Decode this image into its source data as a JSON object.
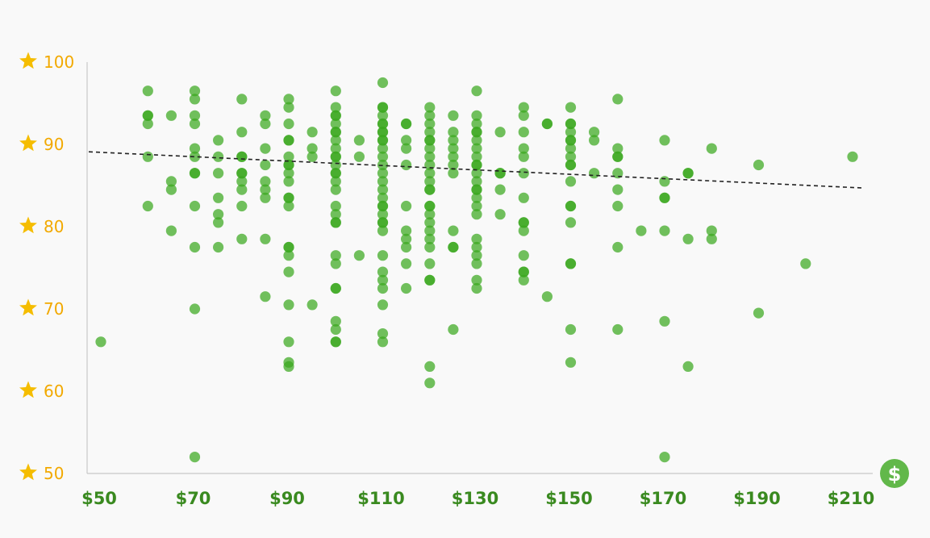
{
  "chart_data": {
    "type": "scatter",
    "title": "",
    "xlabel": "",
    "ylabel": "",
    "x_ticks": [
      "$50",
      "$70",
      "$90",
      "$110",
      "$130",
      "$150",
      "$170",
      "$190",
      "$210"
    ],
    "x_tick_values": [
      50,
      70,
      90,
      110,
      130,
      150,
      170,
      190,
      210
    ],
    "y_ticks": [
      "100",
      "90",
      "80",
      "70",
      "60",
      "50"
    ],
    "y_tick_values": [
      100,
      90,
      80,
      70,
      60,
      50
    ],
    "xlim": [
      48,
      210
    ],
    "ylim": [
      50,
      100
    ],
    "grid": false,
    "x_axis_icon": "dollar-circle-icon",
    "y_tick_icon": "star-icon",
    "colors": {
      "point": "#3aa81f",
      "axis_tick_x": "#3a8a20",
      "axis_tick_y": "#f2a900",
      "star": "#f5bd00",
      "dollar_badge": "#62b84a",
      "trend": "#222222"
    },
    "trend_line": {
      "x": [
        50,
        210
      ],
      "y": [
        89.1,
        84.7
      ]
    },
    "series": [
      {
        "values": [
          [
            50,
            66
          ],
          [
            60,
            96.5
          ],
          [
            60,
            93.5
          ],
          [
            60,
            93.5
          ],
          [
            60,
            92.5
          ],
          [
            60,
            88.5
          ],
          [
            60,
            82.5
          ],
          [
            65,
            93.5
          ],
          [
            65,
            85.5
          ],
          [
            65,
            84.5
          ],
          [
            65,
            79.5
          ],
          [
            70,
            96.5
          ],
          [
            70,
            95.5
          ],
          [
            70,
            93.5
          ],
          [
            70,
            92.5
          ],
          [
            70,
            89.5
          ],
          [
            70,
            88.5
          ],
          [
            70,
            86.5
          ],
          [
            70,
            86.5
          ],
          [
            70,
            82.5
          ],
          [
            70,
            77.5
          ],
          [
            70,
            70
          ],
          [
            70,
            52
          ],
          [
            75,
            90.5
          ],
          [
            75,
            88.5
          ],
          [
            75,
            86.5
          ],
          [
            75,
            83.5
          ],
          [
            75,
            81.5
          ],
          [
            75,
            80.5
          ],
          [
            75,
            77.5
          ],
          [
            80,
            95.5
          ],
          [
            80,
            91.5
          ],
          [
            80,
            88.5
          ],
          [
            80,
            88.5
          ],
          [
            80,
            86.5
          ],
          [
            80,
            86.5
          ],
          [
            80,
            85.5
          ],
          [
            80,
            84.5
          ],
          [
            80,
            82.5
          ],
          [
            80,
            78.5
          ],
          [
            85,
            93.5
          ],
          [
            85,
            92.5
          ],
          [
            85,
            89.5
          ],
          [
            85,
            87.5
          ],
          [
            85,
            85.5
          ],
          [
            85,
            84.5
          ],
          [
            85,
            83.5
          ],
          [
            85,
            78.5
          ],
          [
            85,
            71.5
          ],
          [
            90,
            95.5
          ],
          [
            90,
            94.5
          ],
          [
            90,
            92.5
          ],
          [
            90,
            90.5
          ],
          [
            90,
            90.5
          ],
          [
            90,
            88.5
          ],
          [
            90,
            87.5
          ],
          [
            90,
            87.5
          ],
          [
            90,
            86.5
          ],
          [
            90,
            85.5
          ],
          [
            90,
            83.5
          ],
          [
            90,
            83.5
          ],
          [
            90,
            82.5
          ],
          [
            90,
            77.5
          ],
          [
            90,
            77.5
          ],
          [
            90,
            76.5
          ],
          [
            90,
            74.5
          ],
          [
            90,
            70.5
          ],
          [
            90,
            66
          ],
          [
            90,
            63.5
          ],
          [
            90,
            63
          ],
          [
            95,
            91.5
          ],
          [
            95,
            89.5
          ],
          [
            95,
            88.5
          ],
          [
            95,
            70.5
          ],
          [
            100,
            96.5
          ],
          [
            100,
            94.5
          ],
          [
            100,
            93.5
          ],
          [
            100,
            93.5
          ],
          [
            100,
            92.5
          ],
          [
            100,
            91.5
          ],
          [
            100,
            91.5
          ],
          [
            100,
            90.5
          ],
          [
            100,
            89.5
          ],
          [
            100,
            88.5
          ],
          [
            100,
            88.5
          ],
          [
            100,
            87.5
          ],
          [
            100,
            86.5
          ],
          [
            100,
            86.5
          ],
          [
            100,
            85.5
          ],
          [
            100,
            84.5
          ],
          [
            100,
            82.5
          ],
          [
            100,
            81.5
          ],
          [
            100,
            80.5
          ],
          [
            100,
            80.5
          ],
          [
            100,
            76.5
          ],
          [
            100,
            75.5
          ],
          [
            100,
            72.5
          ],
          [
            100,
            72.5
          ],
          [
            100,
            68.5
          ],
          [
            100,
            67.5
          ],
          [
            100,
            66
          ],
          [
            100,
            66
          ],
          [
            105,
            90.5
          ],
          [
            105,
            88.5
          ],
          [
            105,
            76.5
          ],
          [
            110,
            97.5
          ],
          [
            110,
            94.5
          ],
          [
            110,
            94.5
          ],
          [
            110,
            93.5
          ],
          [
            110,
            92.5
          ],
          [
            110,
            92.5
          ],
          [
            110,
            91.5
          ],
          [
            110,
            91.5
          ],
          [
            110,
            90.5
          ],
          [
            110,
            90.5
          ],
          [
            110,
            89.5
          ],
          [
            110,
            88.5
          ],
          [
            110,
            87.5
          ],
          [
            110,
            86.5
          ],
          [
            110,
            85.5
          ],
          [
            110,
            84.5
          ],
          [
            110,
            83.5
          ],
          [
            110,
            82.5
          ],
          [
            110,
            82.5
          ],
          [
            110,
            81.5
          ],
          [
            110,
            80.5
          ],
          [
            110,
            80.5
          ],
          [
            110,
            79.5
          ],
          [
            110,
            76.5
          ],
          [
            110,
            74.5
          ],
          [
            110,
            73.5
          ],
          [
            110,
            72.5
          ],
          [
            110,
            70.5
          ],
          [
            110,
            67
          ],
          [
            110,
            66
          ],
          [
            115,
            92.5
          ],
          [
            115,
            92.5
          ],
          [
            115,
            90.5
          ],
          [
            115,
            89.5
          ],
          [
            115,
            87.5
          ],
          [
            115,
            82.5
          ],
          [
            115,
            79.5
          ],
          [
            115,
            78.5
          ],
          [
            115,
            77.5
          ],
          [
            115,
            75.5
          ],
          [
            115,
            72.5
          ],
          [
            120,
            94.5
          ],
          [
            120,
            93.5
          ],
          [
            120,
            92.5
          ],
          [
            120,
            91.5
          ],
          [
            120,
            90.5
          ],
          [
            120,
            90.5
          ],
          [
            120,
            89.5
          ],
          [
            120,
            88.5
          ],
          [
            120,
            87.5
          ],
          [
            120,
            86.5
          ],
          [
            120,
            85.5
          ],
          [
            120,
            84.5
          ],
          [
            120,
            84.5
          ],
          [
            120,
            82.5
          ],
          [
            120,
            82.5
          ],
          [
            120,
            81.5
          ],
          [
            120,
            80.5
          ],
          [
            120,
            79.5
          ],
          [
            120,
            78.5
          ],
          [
            120,
            77.5
          ],
          [
            120,
            75.5
          ],
          [
            120,
            73.5
          ],
          [
            120,
            73.5
          ],
          [
            120,
            63
          ],
          [
            120,
            61
          ],
          [
            125,
            93.5
          ],
          [
            125,
            91.5
          ],
          [
            125,
            90.5
          ],
          [
            125,
            89.5
          ],
          [
            125,
            88.5
          ],
          [
            125,
            87.5
          ],
          [
            125,
            86.5
          ],
          [
            125,
            79.5
          ],
          [
            125,
            77.5
          ],
          [
            125,
            77.5
          ],
          [
            125,
            67.5
          ],
          [
            130,
            96.5
          ],
          [
            130,
            93.5
          ],
          [
            130,
            92.5
          ],
          [
            130,
            91.5
          ],
          [
            130,
            91.5
          ],
          [
            130,
            90.5
          ],
          [
            130,
            89.5
          ],
          [
            130,
            88.5
          ],
          [
            130,
            87.5
          ],
          [
            130,
            87.5
          ],
          [
            130,
            86.5
          ],
          [
            130,
            85.5
          ],
          [
            130,
            84.5
          ],
          [
            130,
            84.5
          ],
          [
            130,
            83.5
          ],
          [
            130,
            82.5
          ],
          [
            130,
            81.5
          ],
          [
            130,
            78.5
          ],
          [
            130,
            77.5
          ],
          [
            130,
            76.5
          ],
          [
            130,
            75.5
          ],
          [
            130,
            73.5
          ],
          [
            130,
            72.5
          ],
          [
            135,
            91.5
          ],
          [
            135,
            86.5
          ],
          [
            135,
            86.5
          ],
          [
            135,
            84.5
          ],
          [
            135,
            81.5
          ],
          [
            140,
            94.5
          ],
          [
            140,
            93.5
          ],
          [
            140,
            91.5
          ],
          [
            140,
            89.5
          ],
          [
            140,
            88.5
          ],
          [
            140,
            86.5
          ],
          [
            140,
            83.5
          ],
          [
            140,
            80.5
          ],
          [
            140,
            80.5
          ],
          [
            140,
            79.5
          ],
          [
            140,
            76.5
          ],
          [
            140,
            74.5
          ],
          [
            140,
            74.5
          ],
          [
            140,
            73.5
          ],
          [
            145,
            92.5
          ],
          [
            145,
            92.5
          ],
          [
            145,
            71.5
          ],
          [
            150,
            94.5
          ],
          [
            150,
            92.5
          ],
          [
            150,
            92.5
          ],
          [
            150,
            91.5
          ],
          [
            150,
            90.5
          ],
          [
            150,
            90.5
          ],
          [
            150,
            89.5
          ],
          [
            150,
            88.5
          ],
          [
            150,
            87.5
          ],
          [
            150,
            87.5
          ],
          [
            150,
            85.5
          ],
          [
            150,
            82.5
          ],
          [
            150,
            82.5
          ],
          [
            150,
            80.5
          ],
          [
            150,
            75.5
          ],
          [
            150,
            75.5
          ],
          [
            150,
            67.5
          ],
          [
            150,
            63.5
          ],
          [
            155,
            91.5
          ],
          [
            155,
            90.5
          ],
          [
            155,
            86.5
          ],
          [
            160,
            95.5
          ],
          [
            160,
            89.5
          ],
          [
            160,
            88.5
          ],
          [
            160,
            88.5
          ],
          [
            160,
            86.5
          ],
          [
            160,
            84.5
          ],
          [
            160,
            82.5
          ],
          [
            160,
            77.5
          ],
          [
            160,
            67.5
          ],
          [
            165,
            79.5
          ],
          [
            170,
            90.5
          ],
          [
            170,
            85.5
          ],
          [
            170,
            83.5
          ],
          [
            170,
            83.5
          ],
          [
            170,
            79.5
          ],
          [
            170,
            68.5
          ],
          [
            170,
            52
          ],
          [
            175,
            86.5
          ],
          [
            175,
            86.5
          ],
          [
            175,
            78.5
          ],
          [
            175,
            63
          ],
          [
            180,
            89.5
          ],
          [
            180,
            79.5
          ],
          [
            180,
            78.5
          ],
          [
            190,
            87.5
          ],
          [
            190,
            69.5
          ],
          [
            200,
            75.5
          ],
          [
            210,
            88.5
          ]
        ]
      }
    ]
  }
}
